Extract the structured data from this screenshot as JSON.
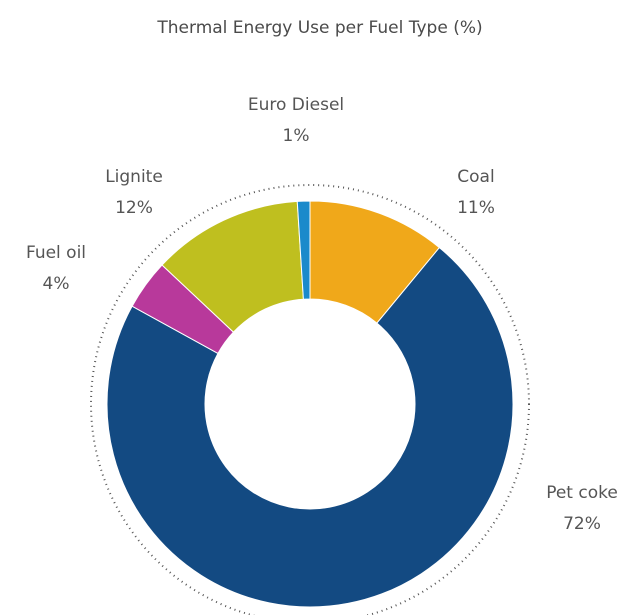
{
  "chart_data": {
    "type": "donut",
    "title": "Thermal Energy Use per Fuel Type (%)",
    "categories": [
      "Coal",
      "Pet coke",
      "Fuel oil",
      "Lignite",
      "Euro Diesel"
    ],
    "values": [
      11,
      72,
      4,
      12,
      1
    ],
    "value_labels": [
      "11%",
      "72%",
      "4%",
      "12%",
      "1%"
    ],
    "colors": [
      "#f0a81a",
      "#134a82",
      "#b8399b",
      "#bfbf1f",
      "#1b8acb"
    ]
  }
}
